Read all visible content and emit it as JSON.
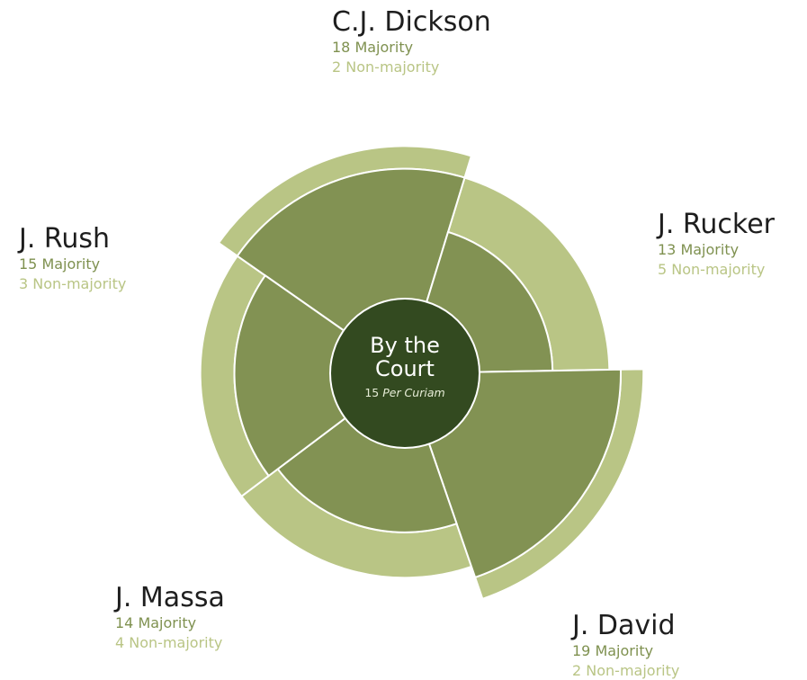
{
  "chart_data": {
    "type": "polar-area",
    "center": {
      "title_line1": "By the",
      "title_line2": "Court",
      "count": "15",
      "count_label": "Per Curiam"
    },
    "series": [
      {
        "name": "Majority",
        "color": "#829253"
      },
      {
        "name": "Non-majority",
        "color": "#b9c585"
      }
    ],
    "categories": [
      "C.J. Dickson",
      "J. Rucker",
      "J. David",
      "J. Massa",
      "J. Rush"
    ],
    "justices": [
      {
        "name": "C.J. Dickson",
        "majority": 18,
        "non_majority": 2,
        "majority_label": "18 Majority",
        "non_majority_label": "2 Non-majority"
      },
      {
        "name": "J. Rucker",
        "majority": 13,
        "non_majority": 5,
        "majority_label": "13 Majority",
        "non_majority_label": "5 Non-majority"
      },
      {
        "name": "J. David",
        "majority": 19,
        "non_majority": 2,
        "majority_label": "19 Majority",
        "non_majority_label": "2 Non-majority"
      },
      {
        "name": "J. Massa",
        "majority": 14,
        "non_majority": 4,
        "majority_label": "14 Majority",
        "non_majority_label": "4 Non-majority"
      },
      {
        "name": "J. Rush",
        "majority": 15,
        "non_majority": 3,
        "majority_label": "15 Majority",
        "non_majority_label": "3 Non-majority"
      }
    ]
  }
}
